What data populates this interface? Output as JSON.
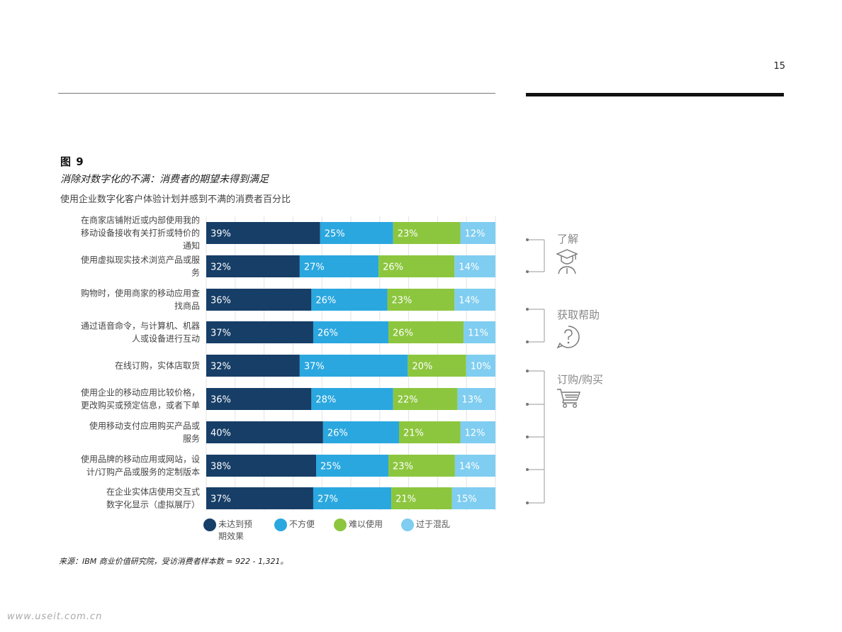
{
  "page": {
    "number": "15"
  },
  "figure": {
    "label": "图 9",
    "title": "消除对数字化的不满：消费者的期望未得到满足",
    "subtitle": "使用企业数字化客户体验计划并感到不满的消费者百分比",
    "source": "来源：IBM 商业价值研究院，受访消费者样本数 = 922 - 1,321。"
  },
  "legend": [
    {
      "label": "未达到预期效果",
      "lines": [
        "未达到预",
        "期效果"
      ],
      "color": "#163e67"
    },
    {
      "label": "不方便",
      "lines": [
        "不方便"
      ],
      "color": "#2aa7df"
    },
    {
      "label": "难以使用",
      "lines": [
        "难以使用"
      ],
      "color": "#8cc63e"
    },
    {
      "label": "过于混乱",
      "lines": [
        "过于混乱"
      ],
      "color": "#7fcdf0"
    }
  ],
  "chart_data": {
    "type": "bar",
    "orientation": "horizontal",
    "stacked": true,
    "categories": [
      "在商家店铺附近或内部使用我的移动设备接收有关打折或特价的通知",
      "使用虚拟现实技术浏览产品或服务",
      "购物时，使用商家的移动应用查找商品",
      "通过语音命令，与计算机、机器人或设备进行互动",
      "在线订购，实体店取货",
      "使用企业的移动应用比较价格，更改购买或预定信息，或者下单",
      "使用移动支付应用购买产品或服务",
      "使用品牌的移动应用或网站，设计/订购产品或服务的定制版本",
      "在企业实体店使用交互式数字化显示（虚拟展厅）"
    ],
    "category_lines": [
      [
        "在商家店铺附近或内部使用我的",
        "移动设备接收有关打折或特价的",
        "通知"
      ],
      [
        "使用虚拟现实技术浏览产品或服",
        "务"
      ],
      [
        "购物时，使用商家的移动应用查",
        "找商品"
      ],
      [
        "通过语音命令，与计算机、机器",
        "人或设备进行互动"
      ],
      [
        "在线订购，实体店取货"
      ],
      [
        "使用企业的移动应用比较价格，",
        "更改购买或预定信息，或者下单"
      ],
      [
        "使用移动支付应用购买产品或",
        "服务"
      ],
      [
        "使用品牌的移动应用或网站，设",
        "计/订购产品或服务的定制版本"
      ],
      [
        "在企业实体店使用交互式",
        "数字化显示（虚拟展厅）"
      ]
    ],
    "series": [
      {
        "name": "未达到预期效果",
        "values": [
          39,
          32,
          36,
          37,
          32,
          36,
          40,
          38,
          37
        ],
        "color": "#163e67"
      },
      {
        "name": "不方便",
        "values": [
          25,
          27,
          26,
          26,
          37,
          28,
          26,
          25,
          27
        ],
        "color": "#2aa7df"
      },
      {
        "name": "难以使用",
        "values": [
          23,
          26,
          23,
          26,
          20,
          22,
          21,
          23,
          21
        ],
        "color": "#8cc63e"
      },
      {
        "name": "过于混乱",
        "values": [
          12,
          14,
          14,
          11,
          10,
          13,
          12,
          14,
          15
        ],
        "color": "#7fcdf0"
      }
    ],
    "value_suffix": "%",
    "grid": true
  },
  "sidebar": {
    "items": [
      {
        "label": "了解",
        "icon": "graduate-icon"
      },
      {
        "label": "获取帮助",
        "icon": "question-icon"
      },
      {
        "label": "订购/购买",
        "icon": "shopping-cart-icon"
      }
    ]
  },
  "watermark": "www.useit.com.cn"
}
